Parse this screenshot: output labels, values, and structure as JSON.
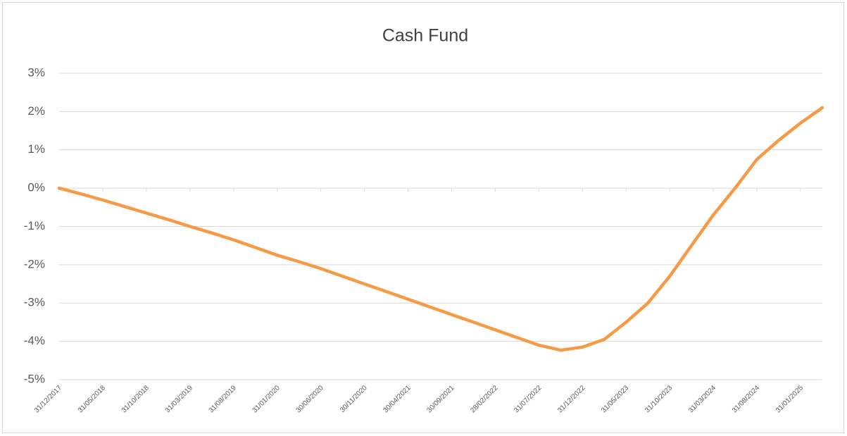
{
  "chart_data": {
    "type": "line",
    "title": "Cash Fund",
    "categories": [
      "31/12/2017",
      null,
      "31/05/2018",
      null,
      "31/10/2018",
      null,
      "31/03/2019",
      null,
      "31/08/2019",
      null,
      "31/01/2020",
      null,
      "30/06/2020",
      null,
      "30/11/2020",
      null,
      "30/04/2021",
      null,
      "30/09/2021",
      null,
      "28/02/2022",
      null,
      "31/07/2022",
      null,
      "31/12/2022",
      null,
      "31/05/2023",
      null,
      "31/10/2023",
      null,
      "31/03/2024",
      null,
      "31/08/2024",
      null,
      "31/01/2025",
      null
    ],
    "series": [
      {
        "name": "Cash Fund",
        "color": "#f79a46",
        "values": [
          0,
          -0.15,
          -0.31,
          -0.48,
          -0.65,
          -0.82,
          -1.0,
          -1.17,
          -1.35,
          -1.55,
          -1.75,
          -1.92,
          -2.1,
          -2.3,
          -2.5,
          -2.7,
          -2.9,
          -3.1,
          -3.3,
          -3.5,
          -3.7,
          -3.9,
          -4.1,
          -4.23,
          -4.15,
          -3.95,
          -3.5,
          -3.0,
          -2.3,
          -1.5,
          -0.7,
          0.0,
          0.75,
          1.25,
          1.7,
          2.1
        ]
      }
    ],
    "ylim": [
      -5,
      3
    ],
    "yticks": [
      {
        "value": -5,
        "label": "-5%"
      },
      {
        "value": -4,
        "label": "-4%"
      },
      {
        "value": -3,
        "label": "-3%"
      },
      {
        "value": -2,
        "label": "-2%"
      },
      {
        "value": -1,
        "label": "-1%"
      },
      {
        "value": 0,
        "label": "0%"
      },
      {
        "value": 1,
        "label": "1%"
      },
      {
        "value": 2,
        "label": "2%"
      },
      {
        "value": 3,
        "label": "3%"
      }
    ],
    "grid": true
  }
}
